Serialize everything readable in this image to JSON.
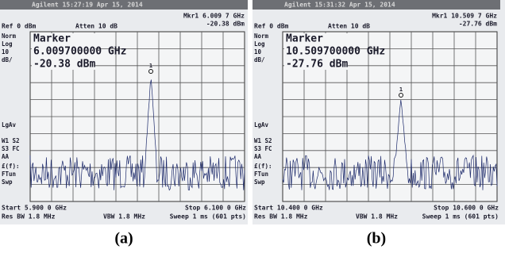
{
  "panels": [
    {
      "header": "Agilent 15:27:19 Apr 15, 2014",
      "mkr_freq": "Mkr1 6.009 7 GHz",
      "mkr_level": "-20.38 dBm",
      "ref": "Ref 0 dBm",
      "atten": "Atten 10 dB",
      "side_labels": [
        "Norm",
        "Log",
        "10",
        "dB/",
        "LgAv",
        "W1 S2",
        "S3 FC",
        "AA",
        "£(f):",
        "FTun",
        "Swp"
      ],
      "marker": {
        "title": "Marker",
        "freq": "6.009700000 GHz",
        "level": "-20.38 dBm"
      },
      "marker_id": "1",
      "start": "Start 5.900 0 GHz",
      "stop": "Stop 6.100 0 GHz",
      "res_bw": "Res BW 1.8 MHz",
      "vbw": "VBW 1.8 MHz",
      "sweep": "Sweep 1 ms (601 pts)",
      "caption": "(a)"
    },
    {
      "header": "Agilent 15:31:32 Apr 15, 2014",
      "mkr_freq": "Mkr1 10.509 7 GHz",
      "mkr_level": "-27.76 dBm",
      "ref": "Ref 0 dBm",
      "atten": "Atten 10 dB",
      "side_labels": [
        "Norm",
        "Log",
        "10",
        "dB/",
        "LgAv",
        "W1 S2",
        "S3 FC",
        "AA",
        "£(f):",
        "FTun",
        "Swp"
      ],
      "marker": {
        "title": "Marker",
        "freq": "10.509700000 GHz",
        "level": "-27.76 dBm"
      },
      "marker_id": "1",
      "start": "Start 10.400 0 GHz",
      "stop": "Stop 10.600 0 GHz",
      "res_bw": "Res BW 1.8 MHz",
      "vbw": "VBW 1.8 MHz",
      "sweep": "Sweep 1 ms (601 pts)",
      "caption": "(b)"
    }
  ]
}
